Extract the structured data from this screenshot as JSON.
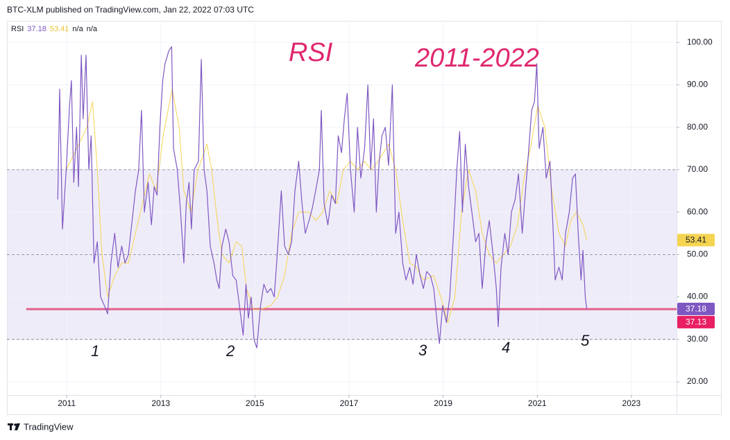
{
  "chart_data": {
    "type": "line",
    "header": "BTC-XLM published on TradingView.com, Jan 22, 2022 07:03 UTC",
    "indicator": "RSI",
    "legend_extra": [
      "n/a",
      "n/a"
    ],
    "annotations": [
      "RSI",
      "2011-2022",
      "1",
      "2",
      "3",
      "4",
      "5"
    ],
    "footer": "TradingView",
    "xlim": [
      2009.73,
      2023.96
    ],
    "xticks": [
      2011,
      2013,
      2015,
      2017,
      2019,
      2021,
      2023
    ],
    "ylim": [
      16.9,
      105.1
    ],
    "yticks": [
      {
        "value": 20,
        "label": "20.00"
      },
      {
        "value": 30,
        "label": "30.00"
      },
      {
        "value": 40,
        "label": "40.00"
      },
      {
        "value": 50,
        "label": "50.00"
      },
      {
        "value": 60,
        "label": "60.00"
      },
      {
        "value": 70,
        "label": "70.00"
      },
      {
        "value": 80,
        "label": "80.00"
      },
      {
        "value": 90,
        "label": "90.00"
      },
      {
        "value": 100,
        "label": "100.00"
      }
    ],
    "grid": true,
    "bands": [
      70,
      50,
      30
    ],
    "band_fill": "#efecf9",
    "hline": {
      "value": 37.13,
      "x_start": 2010.14,
      "color": "#e0608a",
      "tag_color": "#e91e63"
    },
    "series": [
      {
        "color": "#7e57c2",
        "x": [
          2010.81,
          2010.85,
          2010.91,
          2010.99,
          2011.06,
          2011.1,
          2011.15,
          2011.21,
          2011.25,
          2011.31,
          2011.35,
          2011.41,
          2011.47,
          2011.52,
          2011.58,
          2011.65,
          2011.72,
          2011.8,
          2011.87,
          2011.94,
          2012.02,
          2012.09,
          2012.17,
          2012.24,
          2012.31,
          2012.39,
          2012.46,
          2012.53,
          2012.59,
          2012.65,
          2012.73,
          2012.8,
          2012.86,
          2012.92,
          2012.98,
          2013.04,
          2013.09,
          2013.17,
          2013.23,
          2013.27,
          2013.35,
          2013.42,
          2013.49,
          2013.54,
          2013.6,
          2013.65,
          2013.71,
          2013.8,
          2013.86,
          2013.92,
          2013.98,
          2014.05,
          2014.13,
          2014.19,
          2014.24,
          2014.3,
          2014.38,
          2014.45,
          2014.53,
          2014.6,
          2014.67,
          2014.75,
          2014.81,
          2014.86,
          2014.92,
          2014.98,
          2015.04,
          2015.12,
          2015.19,
          2015.26,
          2015.34,
          2015.41,
          2015.48,
          2015.56,
          2015.63,
          2015.71,
          2015.78,
          2015.85,
          2015.93,
          2016.0,
          2016.07,
          2016.15,
          2016.22,
          2016.29,
          2016.37,
          2016.41,
          2016.47,
          2016.55,
          2016.63,
          2016.71,
          2016.77,
          2016.84,
          2016.9,
          2016.96,
          2017.03,
          2017.11,
          2017.18,
          2017.25,
          2017.33,
          2017.4,
          2017.46,
          2017.52,
          2017.58,
          2017.64,
          2017.7,
          2017.77,
          2017.84,
          2017.92,
          2017.99,
          2018.06,
          2018.14,
          2018.21,
          2018.29,
          2018.36,
          2018.43,
          2018.51,
          2018.58,
          2018.65,
          2018.73,
          2018.8,
          2018.88,
          2018.92,
          2018.99,
          2019.07,
          2019.14,
          2019.22,
          2019.29,
          2019.35,
          2019.41,
          2019.47,
          2019.54,
          2019.61,
          2019.69,
          2019.76,
          2019.83,
          2019.91,
          2019.98,
          2020.06,
          2020.13,
          2020.17,
          2020.23,
          2020.31,
          2020.38,
          2020.45,
          2020.53,
          2020.6,
          2020.68,
          2020.75,
          2020.82,
          2020.88,
          2020.94,
          2020.99,
          2021.04,
          2021.12,
          2021.19,
          2021.27,
          2021.34,
          2021.38,
          2021.46,
          2021.53,
          2021.6,
          2021.68,
          2021.75,
          2021.81,
          2021.87,
          2021.93,
          2021.97,
          2022.02,
          2022.05
        ],
        "values": [
          63,
          89,
          56,
          70,
          85,
          91,
          67,
          80,
          66,
          97,
          82,
          97,
          70,
          78,
          48,
          53,
          40,
          38,
          36,
          48,
          55,
          47,
          52,
          48,
          50,
          58,
          65,
          70,
          84,
          60,
          67,
          57,
          66,
          64,
          80,
          91,
          95,
          98,
          99,
          75,
          70,
          60,
          48,
          62,
          67,
          56,
          70,
          72,
          96,
          70,
          65,
          52,
          48,
          44,
          42,
          52,
          56,
          53,
          45,
          44,
          38,
          31,
          43,
          35,
          40,
          30,
          28,
          38,
          43,
          41,
          42,
          40,
          51,
          65,
          52,
          50,
          53,
          65,
          72,
          62,
          55,
          58,
          61,
          65,
          70,
          84,
          62,
          57,
          64,
          62,
          78,
          74,
          82,
          88,
          70,
          60,
          80,
          68,
          75,
          90,
          70,
          82,
          60,
          72,
          78,
          80,
          71,
          90,
          55,
          60,
          48,
          44,
          47,
          43,
          50,
          45,
          42,
          46,
          45,
          42,
          33,
          29,
          38,
          34,
          40,
          55,
          70,
          79,
          60,
          76,
          66,
          60,
          53,
          55,
          42,
          53,
          58,
          50,
          42,
          33,
          47,
          55,
          50,
          60,
          63,
          69,
          55,
          65,
          75,
          84,
          86,
          95,
          75,
          80,
          68,
          72,
          55,
          44,
          47,
          44,
          55,
          60,
          68,
          69,
          55,
          44,
          51,
          40,
          37.18
        ]
      },
      {
        "color": "#f5d451",
        "x": [
          2010.99,
          2011.21,
          2011.43,
          2011.55,
          2011.65,
          2011.75,
          2011.87,
          2012.02,
          2012.17,
          2012.31,
          2012.46,
          2012.61,
          2012.76,
          2012.9,
          2013.05,
          2013.24,
          2013.39,
          2013.49,
          2013.64,
          2013.79,
          2013.98,
          2014.08,
          2014.2,
          2014.3,
          2014.45,
          2014.6,
          2014.72,
          2014.82,
          2014.97,
          2015.12,
          2015.34,
          2015.48,
          2015.63,
          2015.78,
          2015.93,
          2016.15,
          2016.29,
          2016.44,
          2016.59,
          2016.74,
          2016.88,
          2017.03,
          2017.18,
          2017.33,
          2017.47,
          2017.62,
          2017.84,
          2017.99,
          2018.14,
          2018.29,
          2018.43,
          2018.58,
          2018.8,
          2018.95,
          2019.1,
          2019.25,
          2019.39,
          2019.54,
          2019.69,
          2019.83,
          2019.98,
          2020.13,
          2020.28,
          2020.43,
          2020.58,
          2020.72,
          2020.87,
          2021.01,
          2021.16,
          2021.31,
          2021.46,
          2021.6,
          2021.71,
          2021.83,
          2021.97,
          2022.05
        ],
        "values": [
          70,
          75,
          80,
          86,
          70,
          50,
          40,
          45,
          48,
          48,
          55,
          62,
          69,
          65,
          78,
          89,
          80,
          65,
          60,
          70,
          76,
          70,
          58,
          50,
          48,
          53,
          52,
          42,
          37,
          37,
          38,
          40,
          45,
          55,
          60,
          60,
          58,
          60,
          65,
          62,
          70,
          72,
          70,
          72,
          70,
          72,
          76,
          70,
          58,
          48,
          47,
          44,
          45,
          40,
          34,
          40,
          60,
          70,
          65,
          55,
          50,
          48,
          50,
          52,
          57,
          68,
          76,
          85,
          80,
          65,
          55,
          52,
          58,
          60,
          57,
          53.41
        ]
      }
    ]
  }
}
